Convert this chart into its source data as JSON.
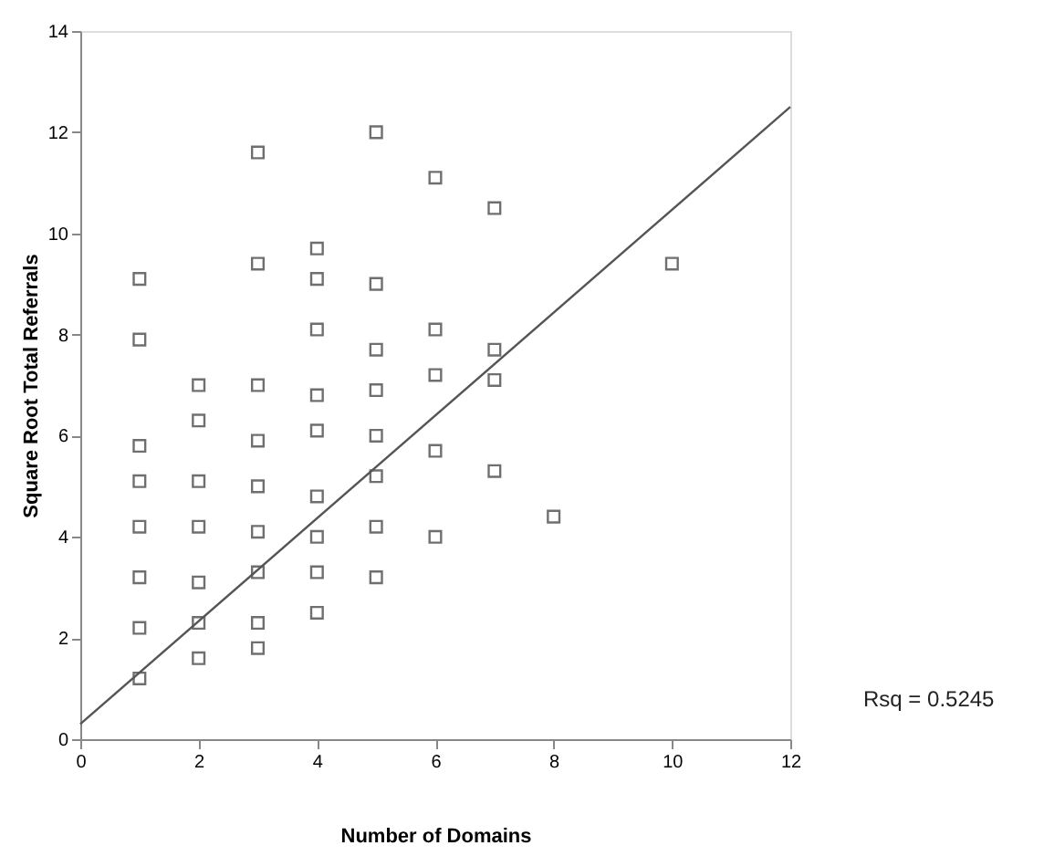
{
  "chart_data": {
    "type": "scatter",
    "xlabel": "Number of Domains",
    "ylabel": "Square Root Total Referrals",
    "xlim": [
      0,
      12
    ],
    "xticks": [
      0,
      2,
      4,
      6,
      8,
      10,
      12
    ],
    "ylim": [
      0,
      14
    ],
    "yticks": [
      0,
      2,
      4,
      6,
      8,
      10,
      12,
      14
    ],
    "grid": false,
    "annotations": [
      "Rsq = 0.5245"
    ],
    "series": [
      {
        "marker": "square",
        "color": "#333333",
        "x": [
          3,
          5,
          6,
          7,
          1,
          3,
          4,
          4,
          5,
          1,
          4,
          5,
          6,
          7,
          10,
          6,
          7,
          6,
          7,
          8,
          6,
          2,
          3,
          4,
          5,
          2,
          1,
          1,
          2,
          3,
          3,
          4,
          5,
          5,
          4,
          1,
          2,
          3,
          4,
          5,
          1,
          2,
          3,
          4,
          5,
          1,
          2,
          3,
          4,
          2,
          3,
          1
        ],
        "values": [
          11.6,
          12.0,
          11.1,
          10.5,
          9.1,
          9.4,
          9.7,
          9.1,
          9.0,
          7.9,
          8.1,
          7.7,
          8.1,
          7.7,
          9.4,
          7.2,
          7.1,
          5.7,
          5.3,
          4.4,
          4.0,
          7.0,
          7.0,
          6.8,
          6.9,
          6.3,
          5.8,
          5.1,
          5.1,
          5.0,
          5.9,
          6.1,
          6.0,
          5.2,
          4.8,
          4.2,
          4.2,
          4.1,
          4.0,
          4.2,
          3.2,
          3.1,
          3.3,
          3.3,
          3.2,
          2.2,
          2.3,
          2.3,
          2.5,
          1.6,
          1.8,
          1.2
        ]
      },
      {
        "type": "line",
        "color": "#555555",
        "x": [
          0,
          12
        ],
        "values": [
          0.3,
          12.5
        ]
      }
    ]
  }
}
